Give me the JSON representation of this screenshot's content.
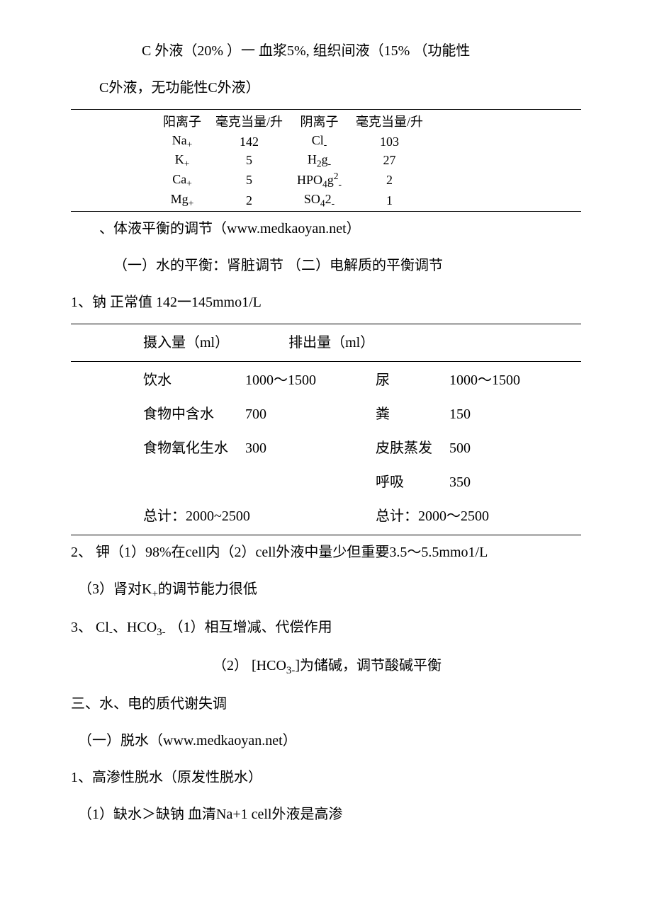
{
  "intro": {
    "line1": "C 外液（20% ）一   血浆5%, 组织间液（15% （功能性",
    "line2": "C外液，无功能性C外液）"
  },
  "ion_table": {
    "header_cation": "阳离子",
    "header_unit1": "毫克当量/升",
    "header_anion": "阴离子",
    "header_unit2": "毫克当量/升",
    "rows": [
      {
        "cation_html": "Na<span class='sub-chem'>+</span>",
        "v1": "142",
        "anion_html": "Cl<span class='sub-chem'>-</span>",
        "v2": "103"
      },
      {
        "cation_html": "K<span class='sub-chem'>+</span>",
        "v1": "5",
        "anion_html": "H<span class='sub-chem'>2</span>g<span class='sub-chem'>-</span>",
        "v2": "27"
      },
      {
        "cation_html": "Ca<span class='sub-chem'>+</span>",
        "v1": "5",
        "anion_html": "HPO<span class='sub-chem'>4</span>g<span class='sup-chem'>2</span><span class='sub-chem'>-</span>",
        "v2": "2"
      },
      {
        "cation_html": "Mg<span class='sub-chem'>+</span>",
        "v1": "2",
        "anion_html": "SO<span class='sub-chem'>4</span>2<span class='sub-chem'>-</span>",
        "v2": "1"
      }
    ]
  },
  "section2": {
    "title": "、体液平衡的调节（www.medkaoyan.net）",
    "sub": "（一）水的平衡：肾脏调节  （二）电解质的平衡调节",
    "sodium": "1、钠 正常值 142一145mmo1/L"
  },
  "balance_table": {
    "header_in": "摄入量（ml）",
    "header_out": "排出量（ml）",
    "rows": [
      {
        "in_label": "饮水",
        "in_val": "1000～1500",
        "out_label": "尿",
        "out_val": "1000～1500"
      },
      {
        "in_label": "食物中含水",
        "in_val": "700",
        "out_label": "粪",
        "out_val": "150"
      },
      {
        "in_label": "食物氧化生水",
        "in_val": "300",
        "out_label": "皮肤蒸发",
        "out_val": "500"
      },
      {
        "in_label": "",
        "in_val": "",
        "out_label": "呼吸",
        "out_val": "350"
      }
    ],
    "total_in": "总计：2000~2500",
    "total_out": "总计：2000～2500"
  },
  "potassium": "2、 钾（1）98%在cell内（2）cell外液中量少但重要3.5～5.5mmo1/L",
  "potassium_3_html": "（3）肾对K<span class='sub-chem'>+</span>的调节能力很低",
  "cl_line_html": "3、 Cl<span class='sub-chem'>-</span>、HCO<span class='sub-chem'>3-</span>       （1）相互增减、代偿作用",
  "cl_line2_html": "（2） [HCO<span class='sub-chem'>3-</span>]为储碱，调节酸碱平衡",
  "section3": {
    "title": "三、水、电的质代谢失调",
    "sub1": "（一）脱水（www.medkaoyan.net）",
    "sub2": "1、高渗性脱水（原发性脱水）",
    "sub3": "（1）缺水＞缺钠  血清Na+1  cell外液是高渗"
  }
}
